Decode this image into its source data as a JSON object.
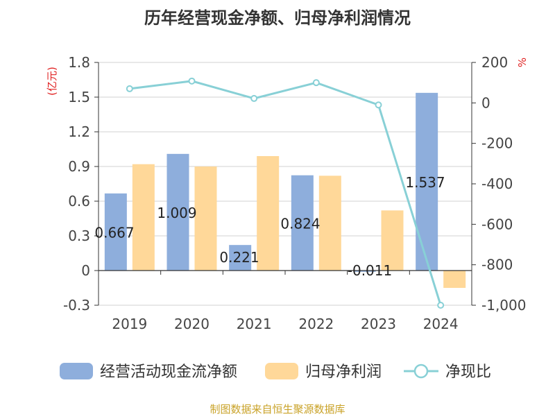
{
  "chart_data": {
    "type": "bar",
    "title": "历年经营现金净额、归母净利润情况",
    "categories": [
      "2019",
      "2020",
      "2021",
      "2022",
      "2023",
      "2024"
    ],
    "series": [
      {
        "name": "经营活动现金流净额",
        "type": "bar",
        "axis": "left",
        "color": "#8eaedc",
        "values": [
          0.667,
          1.009,
          0.221,
          0.824,
          -0.011,
          1.537
        ],
        "labels": [
          "0.667",
          "1.009",
          "0.221",
          "0.824",
          "-0.011",
          "1.537"
        ]
      },
      {
        "name": "归母净利润",
        "type": "bar",
        "axis": "left",
        "color": "#ffd899",
        "values": [
          0.92,
          0.9,
          0.99,
          0.82,
          0.52,
          -0.15
        ]
      },
      {
        "name": "净现比",
        "type": "line",
        "axis": "right",
        "color": "#88d0d6",
        "values": [
          70,
          108,
          22,
          100,
          -10,
          -1000
        ]
      }
    ],
    "left_axis": {
      "label": "(亿元)",
      "min": -0.3,
      "max": 1.8,
      "ticks": [
        -0.3,
        0,
        0.3,
        0.6,
        0.9,
        1.2,
        1.5,
        1.8
      ],
      "tick_labels": [
        "-0.3",
        "0",
        "0.3",
        "0.6",
        "0.9",
        "1.2",
        "1.5",
        "1.8"
      ]
    },
    "right_axis": {
      "label": "%",
      "min": -1000,
      "max": 200,
      "ticks": [
        -1000,
        -800,
        -600,
        -400,
        -200,
        0,
        200
      ],
      "tick_labels": [
        "-1,000",
        "-800",
        "-600",
        "-400",
        "-200",
        "0",
        "200"
      ]
    },
    "grid": true,
    "legend_position": "bottom"
  },
  "footer": {
    "source": "制图数据来自恒生聚源数据库"
  }
}
